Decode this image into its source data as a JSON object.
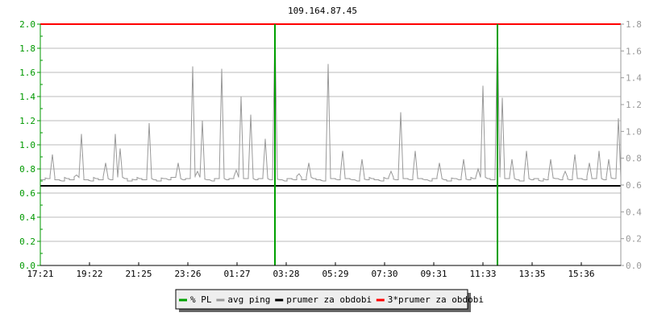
{
  "chart_data": {
    "type": "line",
    "title": "109.164.87.45",
    "ylim_left": [
      0,
      2.0
    ],
    "ylim_right": [
      0,
      1.8
    ],
    "left_ticks": [
      "0.0",
      "0.2",
      "0.4",
      "0.6",
      "0.8",
      "1.0",
      "1.2",
      "1.4",
      "1.6",
      "1.8",
      "2.0"
    ],
    "right_ticks": [
      "0.0",
      "0.2",
      "0.4",
      "0.6",
      "0.8",
      "1.0",
      "1.2",
      "1.4",
      "1.6",
      "1.8"
    ],
    "x_ticks": [
      "17:21",
      "19:22",
      "21:25",
      "23:26",
      "01:27",
      "03:28",
      "05:29",
      "07:30",
      "09:31",
      "11:33",
      "13:35",
      "15:36"
    ],
    "grid": true,
    "legend_placement": "bottom",
    "colors": {
      "pl": "#00a000",
      "ping": "#999999",
      "avg": "#000000",
      "avg3": "#ff0000",
      "left_axis": "#009900",
      "right_axis": "#999999"
    },
    "series": [
      {
        "name": "% PL",
        "values": [
          0,
          0,
          0,
          0,
          0,
          0,
          0,
          0,
          0,
          0,
          0,
          0,
          0,
          0,
          0,
          0,
          0,
          0,
          0,
          0,
          0,
          0,
          0,
          0,
          0,
          0,
          0,
          0,
          0,
          0,
          0,
          0,
          0,
          0,
          0,
          0,
          0,
          0,
          0,
          0,
          0,
          0,
          0,
          0,
          0,
          0,
          0,
          0,
          2.0,
          0,
          0,
          0,
          0,
          0,
          0,
          0,
          0,
          0,
          0,
          0,
          0,
          0,
          0,
          0,
          0,
          0,
          0,
          0,
          0,
          0,
          0,
          0,
          0,
          0,
          0,
          0,
          0,
          0,
          0,
          0,
          0,
          0,
          0,
          0,
          0,
          0,
          0,
          0,
          0,
          0,
          0,
          0,
          0,
          0,
          2.0,
          0,
          0,
          0,
          0,
          0,
          0,
          0,
          0,
          0,
          0,
          0,
          0,
          0,
          0,
          0,
          0,
          0,
          0,
          0,
          0,
          0,
          0,
          0,
          0,
          0
        ]
      },
      {
        "name": "avg ping",
        "values": [
          0.71,
          0.72,
          0.92,
          0.71,
          0.7,
          0.72,
          0.71,
          0.75,
          1.09,
          0.71,
          0.7,
          0.72,
          0.71,
          0.85,
          0.71,
          1.09,
          0.97,
          0.72,
          0.7,
          0.71,
          0.72,
          0.71,
          1.18,
          0.71,
          0.7,
          0.72,
          0.71,
          0.73,
          0.85,
          0.71,
          0.72,
          1.65,
          0.78,
          1.2,
          0.71,
          0.7,
          0.72,
          1.63,
          0.71,
          0.72,
          0.79,
          1.4,
          0.72,
          1.25,
          0.71,
          0.72,
          1.05,
          0.71,
          2.0,
          0.71,
          0.7,
          0.72,
          0.71,
          0.76,
          0.71,
          0.85,
          0.72,
          0.71,
          0.7,
          1.67,
          0.72,
          0.71,
          0.95,
          0.72,
          0.71,
          0.7,
          0.88,
          0.71,
          0.72,
          0.71,
          0.7,
          0.72,
          0.78,
          0.71,
          1.27,
          0.72,
          0.71,
          0.95,
          0.72,
          0.71,
          0.7,
          0.72,
          0.85,
          0.71,
          0.7,
          0.72,
          0.71,
          0.88,
          0.71,
          0.72,
          0.8,
          1.49,
          0.72,
          0.71,
          1.98,
          1.39,
          0.72,
          0.88,
          0.71,
          0.7,
          0.95,
          0.71,
          0.72,
          0.7,
          0.71,
          0.88,
          0.72,
          0.71,
          0.78,
          0.71,
          0.92,
          0.72,
          0.71,
          0.85,
          0.72,
          0.95,
          0.71,
          0.88,
          0.72,
          1.22
        ]
      },
      {
        "name": "prumer za obdobi",
        "value": 0.66
      },
      {
        "name": "3*prumer za obdobi",
        "value": 1.98
      }
    ]
  }
}
